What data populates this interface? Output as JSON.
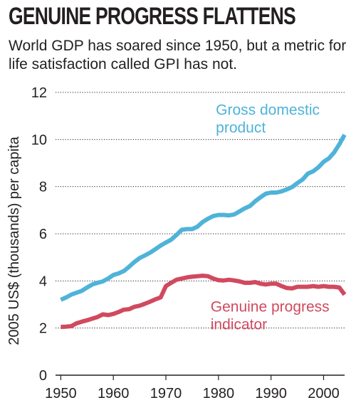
{
  "header": {
    "title": "GENUINE PROGRESS FLATTENS",
    "subtitle": "World GDP has soared since 1950, but a metric for life satisfaction called GPI has not."
  },
  "chart_data": {
    "type": "line",
    "title": "GENUINE PROGRESS FLATTENS",
    "subtitle": "World GDP has soared since 1950, but a metric for life satisfaction called GPI has not.",
    "xlabel": "",
    "ylabel": "2005 US$ (thousands) per capita",
    "xlim": [
      1949,
      2004
    ],
    "ylim": [
      0,
      12
    ],
    "xticks": [
      1950,
      1960,
      1970,
      1980,
      1990,
      2000
    ],
    "yticks": [
      0,
      2,
      4,
      6,
      8,
      10,
      12
    ],
    "grid": "horizontal dotted",
    "legend": "inline labels",
    "series": [
      {
        "name": "Gross domestic product",
        "label_lines": [
          "Gross domestic",
          "product"
        ],
        "color": "#4fb3d9",
        "x": [
          1950,
          1951,
          1952,
          1953,
          1954,
          1955,
          1956,
          1957,
          1958,
          1959,
          1960,
          1961,
          1962,
          1963,
          1964,
          1965,
          1966,
          1967,
          1968,
          1969,
          1970,
          1971,
          1972,
          1973,
          1974,
          1975,
          1976,
          1977,
          1978,
          1979,
          1980,
          1981,
          1982,
          1983,
          1984,
          1985,
          1986,
          1987,
          1988,
          1989,
          1990,
          1991,
          1992,
          1993,
          1994,
          1995,
          1996,
          1997,
          1998,
          1999,
          2000,
          2001,
          2002,
          2003,
          2004
        ],
        "y": [
          3.2,
          3.3,
          3.42,
          3.5,
          3.58,
          3.72,
          3.85,
          3.92,
          3.98,
          4.1,
          4.25,
          4.32,
          4.42,
          4.6,
          4.8,
          4.97,
          5.08,
          5.2,
          5.35,
          5.5,
          5.63,
          5.75,
          5.95,
          6.17,
          6.2,
          6.2,
          6.3,
          6.5,
          6.64,
          6.75,
          6.8,
          6.8,
          6.78,
          6.82,
          6.95,
          7.08,
          7.18,
          7.38,
          7.55,
          7.7,
          7.75,
          7.75,
          7.8,
          7.88,
          7.98,
          8.15,
          8.3,
          8.55,
          8.65,
          8.82,
          9.05,
          9.2,
          9.45,
          9.8,
          10.2
        ]
      },
      {
        "name": "Genuine progress indicator",
        "label_lines": [
          "Genuine progress",
          "indicator"
        ],
        "color": "#d04a5f",
        "x": [
          1950,
          1951,
          1952,
          1953,
          1954,
          1955,
          1956,
          1957,
          1958,
          1959,
          1960,
          1961,
          1962,
          1963,
          1964,
          1965,
          1966,
          1967,
          1968,
          1969,
          1970,
          1971,
          1972,
          1973,
          1974,
          1975,
          1976,
          1977,
          1978,
          1979,
          1980,
          1981,
          1982,
          1983,
          1984,
          1985,
          1986,
          1987,
          1988,
          1989,
          1990,
          1991,
          1992,
          1993,
          1994,
          1995,
          1996,
          1997,
          1998,
          1999,
          2000,
          2001,
          2002,
          2003,
          2004
        ],
        "y": [
          2.05,
          2.06,
          2.08,
          2.2,
          2.27,
          2.33,
          2.4,
          2.47,
          2.58,
          2.55,
          2.6,
          2.68,
          2.78,
          2.8,
          2.9,
          2.95,
          3.03,
          3.12,
          3.22,
          3.3,
          3.78,
          3.92,
          4.05,
          4.1,
          4.15,
          4.18,
          4.2,
          4.22,
          4.2,
          4.1,
          4.03,
          4.02,
          4.05,
          4.02,
          3.98,
          3.92,
          3.92,
          3.95,
          3.88,
          3.85,
          3.88,
          3.88,
          3.78,
          3.7,
          3.68,
          3.75,
          3.75,
          3.75,
          3.78,
          3.75,
          3.78,
          3.75,
          3.75,
          3.72,
          3.42
        ]
      }
    ]
  }
}
